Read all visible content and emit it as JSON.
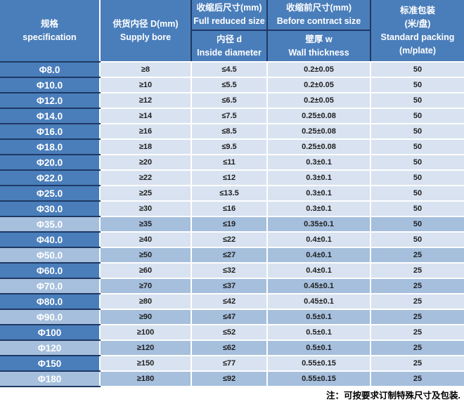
{
  "colors": {
    "header_blue": "#4a7ebb",
    "navy_border": "#1f3864",
    "row_light": "#d8e2f0",
    "row_shaded": "#a5bfdd",
    "grid_white": "#ffffff",
    "data_text": "#1f1f1f"
  },
  "table": {
    "header": {
      "spec": {
        "zh": "规格",
        "en": "specification"
      },
      "supply_bore": {
        "zh": "供货内径 D(mm)",
        "en": "Supply bore"
      },
      "reduced_size": {
        "zh": "收缩后尺寸(mm)",
        "en": "Full reduced size"
      },
      "inside_diameter": {
        "zh": "内径 d",
        "en": "Inside diameter"
      },
      "before_contract": {
        "zh": "收缩前尺寸(mm)",
        "en": "Before contract size"
      },
      "wall_thickness": {
        "zh": "壁厚 w",
        "en": "Wall thickness"
      },
      "packing": {
        "zh": "标准包装",
        "zh2": "(米/盘)",
        "en": "Standard packing",
        "en2": "(m/plate)"
      }
    },
    "rows": [
      {
        "spec": "Φ8.0",
        "supply_bore": "≥8",
        "inside_diameter": "≤4.5",
        "wall_thickness": "0.2±0.05",
        "packing": "50",
        "shaded": false
      },
      {
        "spec": "Φ10.0",
        "supply_bore": "≥10",
        "inside_diameter": "≤5.5",
        "wall_thickness": "0.2±0.05",
        "packing": "50",
        "shaded": false
      },
      {
        "spec": "Φ12.0",
        "supply_bore": "≥12",
        "inside_diameter": "≤6.5",
        "wall_thickness": "0.2±0.05",
        "packing": "50",
        "shaded": false
      },
      {
        "spec": "Φ14.0",
        "supply_bore": "≥14",
        "inside_diameter": "≤7.5",
        "wall_thickness": "0.25±0.08",
        "packing": "50",
        "shaded": false
      },
      {
        "spec": "Φ16.0",
        "supply_bore": "≥16",
        "inside_diameter": "≤8.5",
        "wall_thickness": "0.25±0.08",
        "packing": "50",
        "shaded": false
      },
      {
        "spec": "Φ18.0",
        "supply_bore": "≥18",
        "inside_diameter": "≤9.5",
        "wall_thickness": "0.25±0.08",
        "packing": "50",
        "shaded": false
      },
      {
        "spec": "Φ20.0",
        "supply_bore": "≥20",
        "inside_diameter": "≤11",
        "wall_thickness": "0.3±0.1",
        "packing": "50",
        "shaded": false
      },
      {
        "spec": "Φ22.0",
        "supply_bore": "≥22",
        "inside_diameter": "≤12",
        "wall_thickness": "0.3±0.1",
        "packing": "50",
        "shaded": false
      },
      {
        "spec": "Φ25.0",
        "supply_bore": "≥25",
        "inside_diameter": "≤13.5",
        "wall_thickness": "0.3±0.1",
        "packing": "50",
        "shaded": false
      },
      {
        "spec": "Φ30.0",
        "supply_bore": "≥30",
        "inside_diameter": "≤16",
        "wall_thickness": "0.3±0.1",
        "packing": "50",
        "shaded": false
      },
      {
        "spec": "Φ35.0",
        "supply_bore": "≥35",
        "inside_diameter": "≤19",
        "wall_thickness": "0.35±0.1",
        "packing": "50",
        "shaded": true
      },
      {
        "spec": "Φ40.0",
        "supply_bore": "≥40",
        "inside_diameter": "≤22",
        "wall_thickness": "0.4±0.1",
        "packing": "50",
        "shaded": false
      },
      {
        "spec": "Φ50.0",
        "supply_bore": "≥50",
        "inside_diameter": "≤27",
        "wall_thickness": "0.4±0.1",
        "packing": "25",
        "shaded": true
      },
      {
        "spec": "Φ60.0",
        "supply_bore": "≥60",
        "inside_diameter": "≤32",
        "wall_thickness": "0.4±0.1",
        "packing": "25",
        "shaded": false
      },
      {
        "spec": "Φ70.0",
        "supply_bore": "≥70",
        "inside_diameter": "≤37",
        "wall_thickness": "0.45±0.1",
        "packing": "25",
        "shaded": true
      },
      {
        "spec": "Φ80.0",
        "supply_bore": "≥80",
        "inside_diameter": "≤42",
        "wall_thickness": "0.45±0.1",
        "packing": "25",
        "shaded": false
      },
      {
        "spec": "Φ90.0",
        "supply_bore": "≥90",
        "inside_diameter": "≤47",
        "wall_thickness": "0.5±0.1",
        "packing": "25",
        "shaded": true
      },
      {
        "spec": "Φ100",
        "supply_bore": "≥100",
        "inside_diameter": "≤52",
        "wall_thickness": "0.5±0.1",
        "packing": "25",
        "shaded": false
      },
      {
        "spec": "Φ120",
        "supply_bore": "≥120",
        "inside_diameter": "≤62",
        "wall_thickness": "0.5±0.1",
        "packing": "25",
        "shaded": true
      },
      {
        "spec": "Φ150",
        "supply_bore": "≥150",
        "inside_diameter": "≤77",
        "wall_thickness": "0.55±0.15",
        "packing": "25",
        "shaded": false
      },
      {
        "spec": "Φ180",
        "supply_bore": "≥180",
        "inside_diameter": "≤92",
        "wall_thickness": "0.55±0.15",
        "packing": "25",
        "shaded": true
      }
    ]
  },
  "note": "注：可按要求订制特殊尺寸及包装."
}
